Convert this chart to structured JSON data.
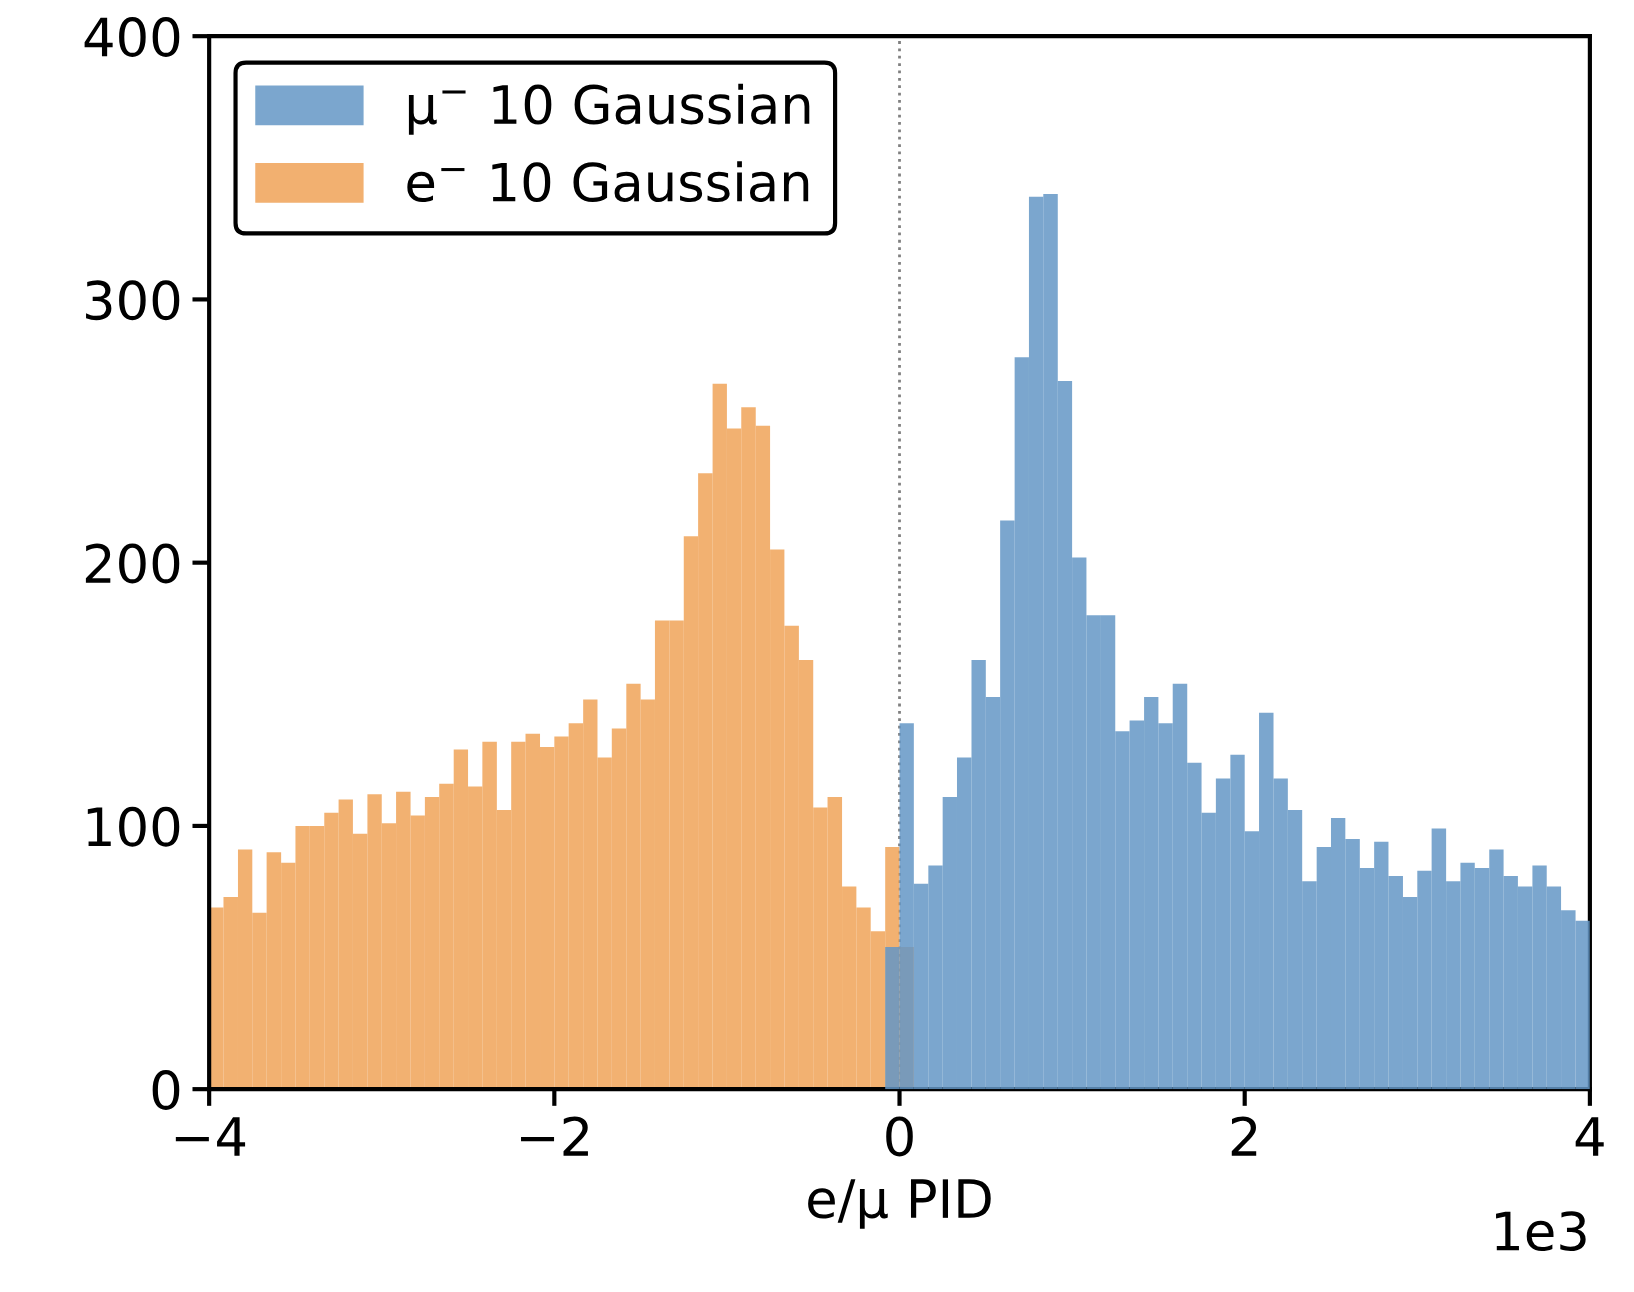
{
  "chart_data": {
    "type": "histogram",
    "xlabel": "e/μ PID",
    "annotations": [
      "1e3"
    ],
    "bins": [
      -4,
      -3.917,
      -3.833,
      -3.75,
      -3.667,
      -3.583,
      -3.5,
      -3.417,
      -3.333,
      -3.25,
      -3.167,
      -3.083,
      -3,
      -2.917,
      -2.833,
      -2.75,
      -2.667,
      -2.583,
      -2.5,
      -2.417,
      -2.333,
      -2.25,
      -2.167,
      -2.083,
      -2,
      -1.917,
      -1.833,
      -1.75,
      -1.667,
      -1.583,
      -1.5,
      -1.417,
      -1.333,
      -1.25,
      -1.167,
      -1.083,
      -1,
      -0.917,
      -0.833,
      -0.75,
      -0.667,
      -0.583,
      -0.5,
      -0.417,
      -0.333,
      -0.25,
      -0.167,
      -0.083,
      0,
      0.083,
      0.167,
      0.25,
      0.333,
      0.417,
      0.5,
      0.583,
      0.667,
      0.75,
      0.833,
      0.917,
      1,
      1.083,
      1.167,
      1.25,
      1.333,
      1.417,
      1.5,
      1.583,
      1.667,
      1.75,
      1.833,
      1.917,
      2,
      2.083,
      2.167,
      2.25,
      2.333,
      2.417,
      2.5,
      2.583,
      2.667,
      2.75,
      2.833,
      2.917,
      3,
      3.083,
      3.167,
      3.25,
      3.333,
      3.417,
      3.5,
      3.583,
      3.667,
      3.75,
      3.833,
      3.917,
      4
    ],
    "series": [
      {
        "name": "e$^{−}$ 10 Gaussian",
        "color": "#f0a358",
        "values": [
          69,
          73,
          91,
          67,
          90,
          86,
          100,
          100,
          105,
          110,
          97,
          112,
          101,
          113,
          104,
          111,
          116,
          129,
          115,
          132,
          106,
          132,
          135,
          130,
          134,
          139,
          148,
          126,
          137,
          154,
          148,
          178,
          178,
          210,
          234,
          268,
          251,
          259,
          252,
          205,
          176,
          163,
          107,
          111,
          77,
          69,
          60,
          92,
          54,
          null,
          null,
          null,
          null,
          null,
          null,
          null,
          null,
          null,
          null,
          null,
          null,
          null,
          null,
          null,
          null,
          null,
          null,
          null,
          null,
          null,
          null,
          null,
          null,
          null,
          null,
          null,
          null,
          null,
          null,
          null,
          null,
          null,
          null,
          null,
          null,
          null,
          null,
          null,
          null,
          null,
          null,
          null,
          null,
          null,
          null,
          null
        ]
      },
      {
        "name": "μ$^{−}$ 10 Gaussian",
        "color": "#6497c6",
        "values": [
          null,
          null,
          null,
          null,
          null,
          null,
          null,
          null,
          null,
          null,
          null,
          null,
          null,
          null,
          null,
          null,
          null,
          null,
          null,
          null,
          null,
          null,
          null,
          null,
          null,
          null,
          null,
          null,
          null,
          null,
          null,
          null,
          null,
          null,
          null,
          null,
          null,
          null,
          null,
          null,
          null,
          null,
          null,
          null,
          null,
          null,
          null,
          54,
          139,
          78,
          85,
          111,
          126,
          163,
          149,
          216,
          278,
          339,
          340,
          269,
          202,
          180,
          180,
          136,
          140,
          149,
          139,
          154,
          124,
          105,
          118,
          127,
          98,
          143,
          118,
          106,
          79,
          92,
          103,
          95,
          84,
          94,
          81,
          73,
          83,
          99,
          79,
          86,
          84,
          91,
          81,
          77,
          85,
          77,
          68,
          64
        ]
      }
    ],
    "xlim": [
      -4,
      4
    ],
    "xticks": [
      {
        "value": -4,
        "label": "−4"
      },
      {
        "value": -2,
        "label": "−2"
      },
      0,
      2,
      4
    ],
    "ylim": [
      0,
      400
    ],
    "yticks": [
      0,
      100,
      200,
      300,
      400
    ],
    "ref_lines": [
      {
        "axis": "x",
        "value": 0,
        "color": "#808080",
        "line_style": "dotted"
      }
    ],
    "legend": "top left"
  }
}
